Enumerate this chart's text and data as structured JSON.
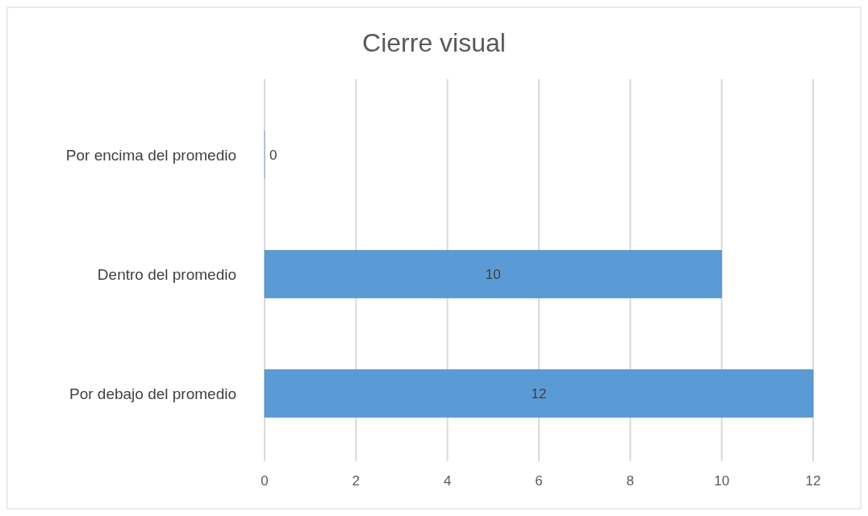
{
  "chart_data": {
    "type": "bar",
    "title": "Cierre visual",
    "orientation": "horizontal",
    "categories": [
      "Por encima del promedio",
      "Dentro del promedio",
      "Por debajo del promedio"
    ],
    "values": [
      0,
      10,
      12
    ],
    "color": "#5b9bd5",
    "xlim": [
      0,
      12
    ],
    "xticks": [
      0,
      2,
      4,
      6,
      8,
      10,
      12
    ],
    "grid": "x",
    "data_labels": true
  }
}
